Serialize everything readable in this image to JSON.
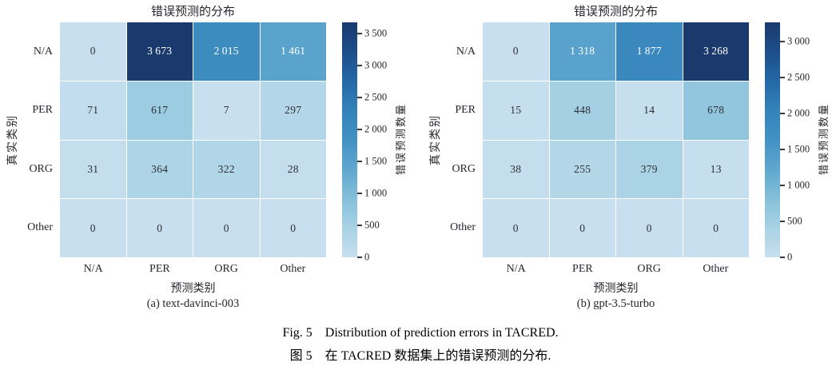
{
  "figure": {
    "caption_en": "Fig. 5　Distribution of prediction errors in TACRED.",
    "caption_zh": "图 5　在 TACRED 数据集上的错误预测的分布."
  },
  "colors": {
    "cmap_stops": [
      [
        0.0,
        "#c7dfee"
      ],
      [
        0.125,
        "#a8d2e5"
      ],
      [
        0.25,
        "#85c0da"
      ],
      [
        0.375,
        "#5fa7cf"
      ],
      [
        0.5,
        "#4292c4"
      ],
      [
        0.625,
        "#3482ba"
      ],
      [
        0.75,
        "#2468a8"
      ],
      [
        0.875,
        "#1d4e8a"
      ],
      [
        1.0,
        "#1a3a6d"
      ]
    ],
    "annotation_dark": "#2e2e36",
    "annotation_light": "#ffffff",
    "white_text_threshold": 0.35
  },
  "chart_data": [
    {
      "type": "heatmap",
      "title": "错误预测的分布",
      "subcaption": "(a) text-davinci-003",
      "xlabel": "预测类别",
      "ylabel": "真实类别",
      "x_categories": [
        "N/A",
        "PER",
        "ORG",
        "Other"
      ],
      "y_categories": [
        "N/A",
        "PER",
        "ORG",
        "Other"
      ],
      "values": [
        [
          0,
          3673,
          2015,
          1461
        ],
        [
          71,
          617,
          7,
          297
        ],
        [
          31,
          364,
          322,
          28
        ],
        [
          0,
          0,
          0,
          0
        ]
      ],
      "vmin": 0,
      "vmax": 3673,
      "colorbar": {
        "label": "错误预测数量",
        "ticks": [
          {
            "value": 0,
            "label": "0"
          },
          {
            "value": 500,
            "label": "500"
          },
          {
            "value": 1000,
            "label": "1 000"
          },
          {
            "value": 1500,
            "label": "1 500"
          },
          {
            "value": 2000,
            "label": "2 000"
          },
          {
            "value": 2500,
            "label": "2 500"
          },
          {
            "value": 3000,
            "label": "3 000"
          },
          {
            "value": 3500,
            "label": "3 500"
          }
        ]
      }
    },
    {
      "type": "heatmap",
      "title": "错误预测的分布",
      "subcaption": "(b) gpt-3.5-turbo",
      "xlabel": "预测类别",
      "ylabel": "真实类别",
      "x_categories": [
        "N/A",
        "PER",
        "ORG",
        "Other"
      ],
      "y_categories": [
        "N/A",
        "PER",
        "ORG",
        "Other"
      ],
      "values": [
        [
          0,
          1318,
          1877,
          3268
        ],
        [
          15,
          448,
          14,
          678
        ],
        [
          38,
          255,
          379,
          13
        ],
        [
          0,
          0,
          0,
          0
        ]
      ],
      "vmin": 0,
      "vmax": 3268,
      "colorbar": {
        "label": "错误预测数量",
        "ticks": [
          {
            "value": 0,
            "label": "0"
          },
          {
            "value": 500,
            "label": "500"
          },
          {
            "value": 1000,
            "label": "1 000"
          },
          {
            "value": 1500,
            "label": "1 500"
          },
          {
            "value": 2000,
            "label": "2 000"
          },
          {
            "value": 2500,
            "label": "2 500"
          },
          {
            "value": 3000,
            "label": "3 000"
          }
        ]
      }
    }
  ]
}
